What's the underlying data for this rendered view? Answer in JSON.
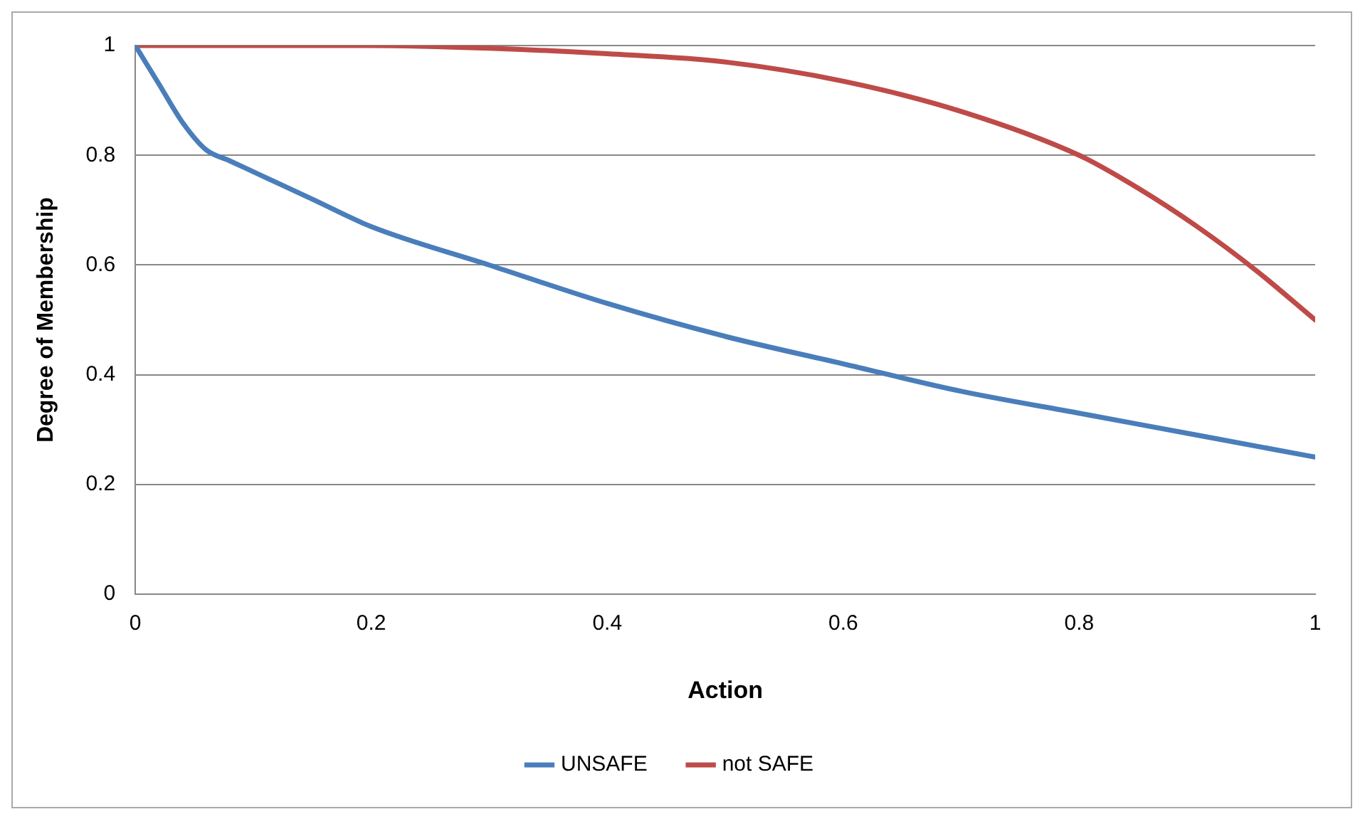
{
  "chart_data": {
    "type": "line",
    "xlabel": "Action",
    "ylabel": "Degree of Membership",
    "xlim": [
      0,
      1
    ],
    "xticks": [
      0,
      0.2,
      0.4,
      0.6,
      0.8,
      1
    ],
    "ylim": [
      0,
      1
    ],
    "yticks": [
      0,
      0.2,
      0.4,
      0.6,
      0.8,
      1
    ],
    "grid": "y",
    "legend": "bottom",
    "marker": "none",
    "line_style": "solid",
    "series": [
      {
        "name": "UNSAFE",
        "color": "#4a7ebb",
        "x": [
          0,
          0.02,
          0.04,
          0.06,
          0.08,
          0.1,
          0.15,
          0.2,
          0.3,
          0.4,
          0.5,
          0.6,
          0.7,
          0.8,
          0.9,
          1
        ],
        "values": [
          1,
          0.93,
          0.86,
          0.81,
          0.79,
          0.77,
          0.72,
          0.67,
          0.6,
          0.53,
          0.47,
          0.42,
          0.37,
          0.33,
          0.29,
          0.25
        ]
      },
      {
        "name": "not SAFE",
        "color": "#be4b48",
        "x": [
          0,
          0.1,
          0.2,
          0.3,
          0.4,
          0.5,
          0.6,
          0.7,
          0.8,
          0.85,
          0.9,
          0.95,
          1
        ],
        "values": [
          1,
          1,
          1,
          0.995,
          0.985,
          0.97,
          0.935,
          0.88,
          0.8,
          0.74,
          0.67,
          0.59,
          0.5
        ]
      }
    ]
  }
}
